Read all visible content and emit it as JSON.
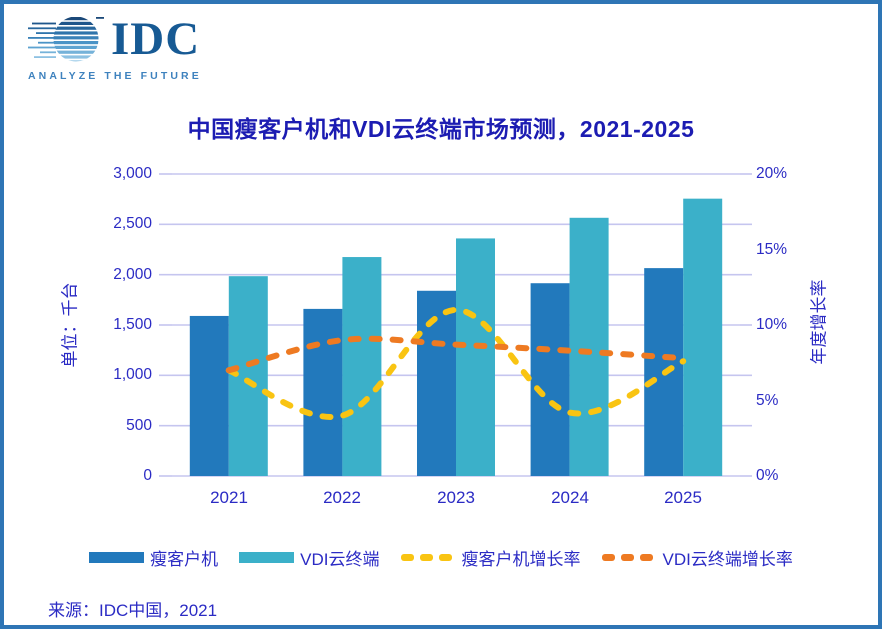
{
  "logo": {
    "brand": "IDC",
    "tagline": "ANALYZE THE FUTURE",
    "globe_icon": "striped-globe-icon"
  },
  "title": "中国瘦客户机和VDI云终端市场预测，2021-2025",
  "source": "来源：IDC中国，2021",
  "colors": {
    "frame_border": "#2e75b5",
    "title_text": "#1c1cb2",
    "axis_text": "#2b2bc4",
    "gridline": "#c5c5ef",
    "bar_thin_client": "#2279bc",
    "bar_vdi": "#3bb0c9",
    "line_thin_client_growth": "#f9c412",
    "line_vdi_growth": "#ee7a22"
  },
  "axes": {
    "left_title": "单位：千台",
    "right_title": "年度增长率",
    "left_ticks": [
      "3,000",
      "2,500",
      "2,000",
      "1,500",
      "1,000",
      "500",
      "0"
    ],
    "right_ticks": [
      "20%",
      "15%",
      "10%",
      "5%",
      "0%"
    ]
  },
  "legend": [
    {
      "label": "瘦客户机",
      "type": "bar",
      "color": "#2279bc"
    },
    {
      "label": "VDI云终端",
      "type": "bar",
      "color": "#3bb0c9"
    },
    {
      "label": "瘦客户机增长率",
      "type": "line",
      "color": "#f9c412"
    },
    {
      "label": "VDI云终端增长率",
      "type": "line",
      "color": "#ee7a22"
    }
  ],
  "chart_data": {
    "type": "combo-bar-line",
    "title": "中国瘦客户机和VDI云终端市场预测，2021-2025",
    "categories": [
      "2021",
      "2022",
      "2023",
      "2024",
      "2025"
    ],
    "bar_series": [
      {
        "name": "瘦客户机",
        "color": "#2279bc",
        "axis": "left",
        "values": [
          1590,
          1660,
          1840,
          1915,
          2065
        ]
      },
      {
        "name": "VDI云终端",
        "color": "#3bb0c9",
        "axis": "left",
        "values": [
          1985,
          2175,
          2360,
          2565,
          2755
        ]
      }
    ],
    "line_series": [
      {
        "name": "瘦客户机增长率",
        "color": "#f9c412",
        "axis": "right",
        "style": "dashed",
        "values_pct": [
          7.0,
          4.0,
          11.0,
          4.2,
          7.6
        ]
      },
      {
        "name": "VDI云终端增长率",
        "color": "#ee7a22",
        "axis": "right",
        "style": "dashed",
        "values_pct": [
          7.0,
          9.0,
          8.7,
          8.3,
          7.8
        ]
      }
    ],
    "ylabel": "单位：千台",
    "y2label": "年度增长率",
    "ylim": [
      0,
      3000
    ],
    "ytick_step": 500,
    "y2lim": [
      0,
      20
    ],
    "y2tick_step": 5,
    "grid": true,
    "legend_position": "bottom",
    "smoothed_lines": true
  }
}
